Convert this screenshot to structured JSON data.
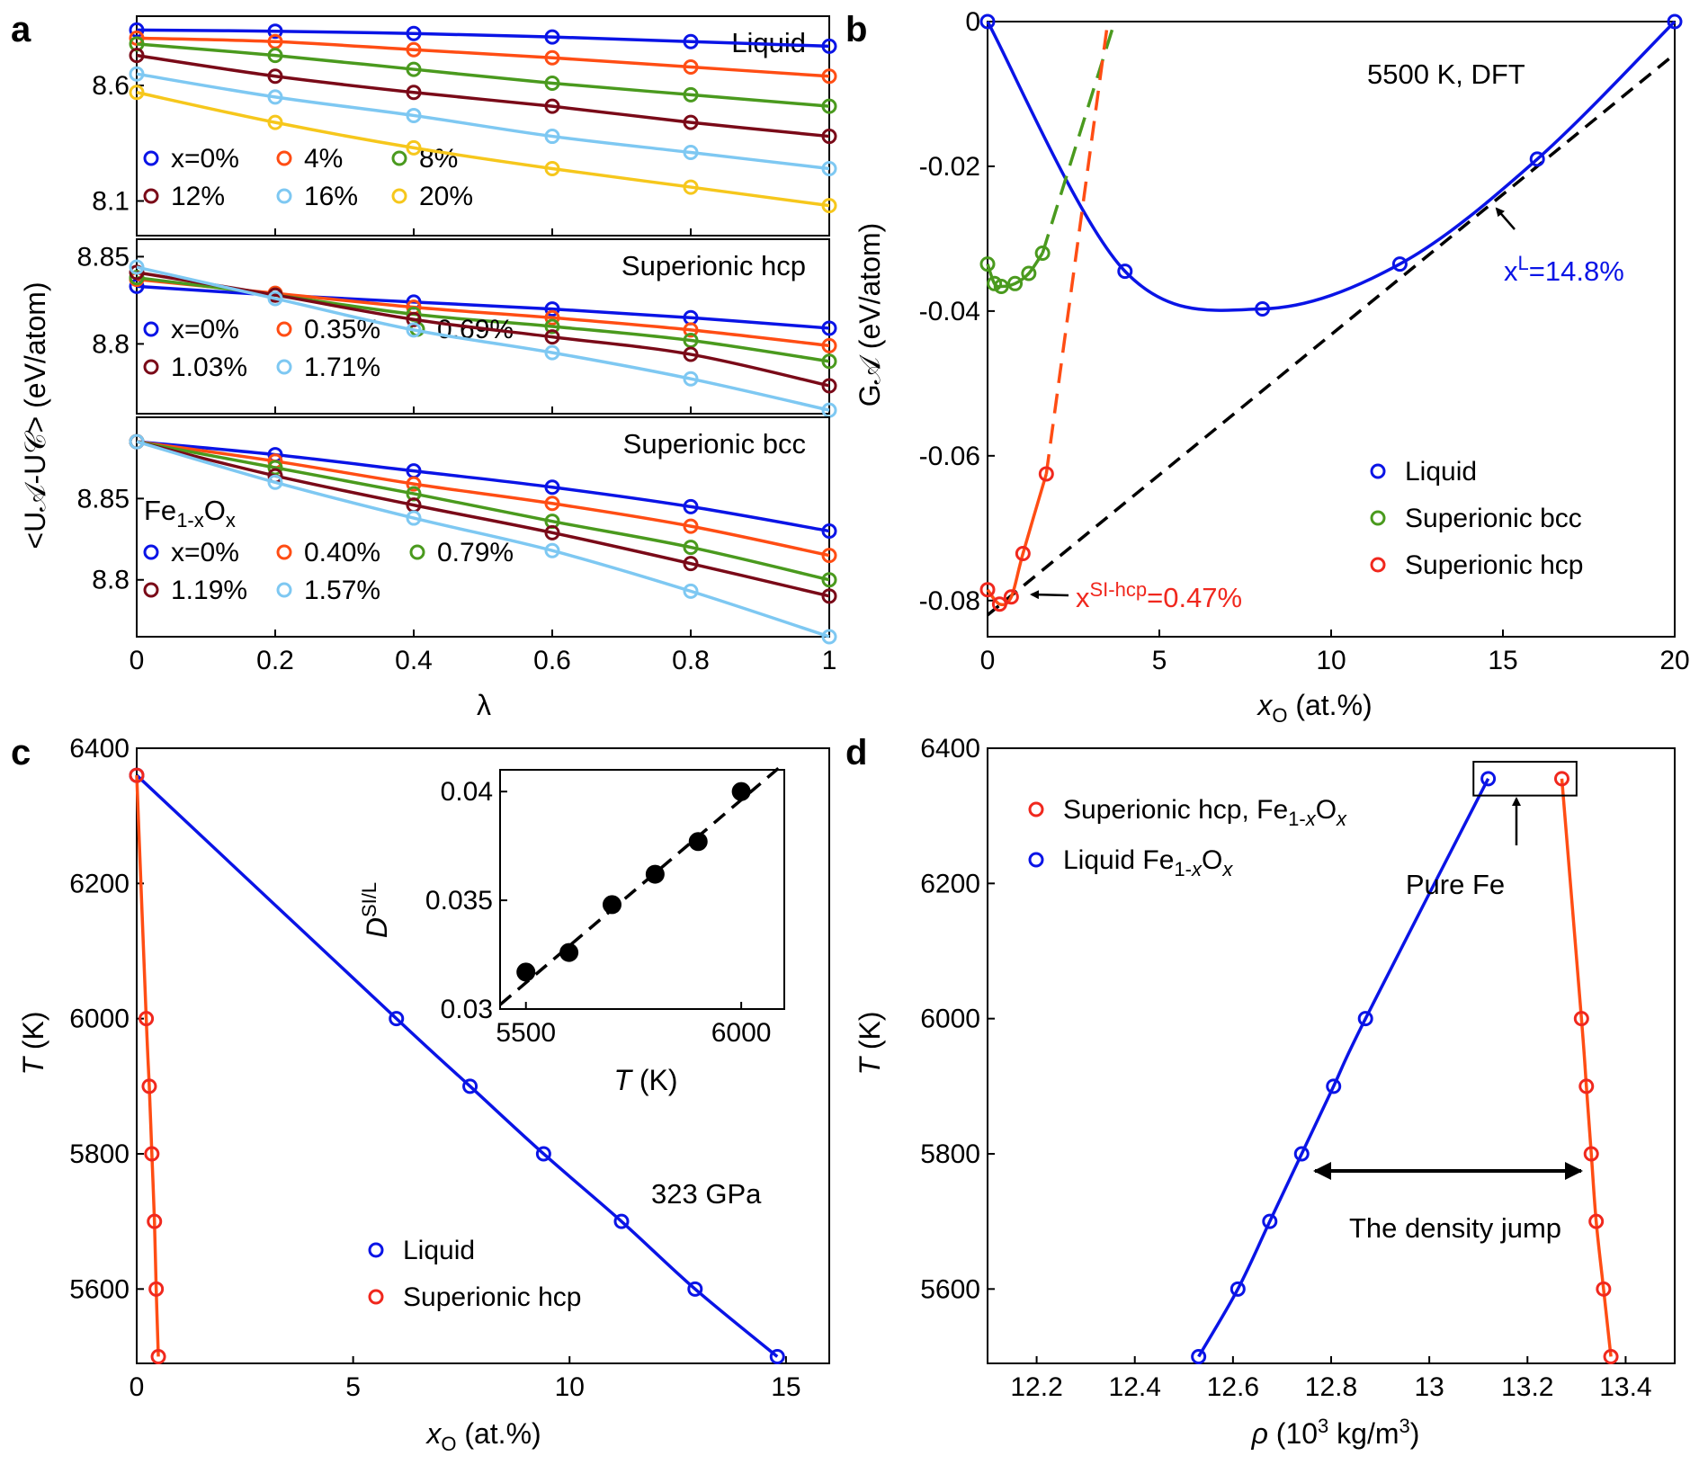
{
  "colors": {
    "blue": "#0a14e6",
    "orange": "#ff4d14",
    "green": "#4a9a1e",
    "maroon": "#7a0a18",
    "lightblue": "#7ec8f2",
    "yellow": "#f6c71c",
    "red": "#f0281e",
    "black": "#000000"
  },
  "chart_data": [
    {
      "panel": "a",
      "panel_label": "a",
      "type": "line",
      "ylabel": "<U𝒜-U𝒞> (eV/atom)",
      "xlabel": "λ",
      "x_ticks": [
        "0",
        "0.2",
        "0.4",
        "0.6",
        "0.8",
        "1"
      ],
      "x": [
        0,
        0.2,
        0.4,
        0.6,
        0.8,
        1
      ],
      "xlim": [
        0,
        1
      ],
      "subplots": [
        {
          "title": "Liquid",
          "ylim": [
            7.95,
            8.9
          ],
          "y_ticks": [
            "8.6",
            "8.1"
          ],
          "y_tick_values": [
            8.6,
            8.1
          ],
          "series": [
            {
              "name": "x=0%",
              "color": "blue",
              "values": [
                8.84,
                8.835,
                8.825,
                8.81,
                8.79,
                8.77
              ]
            },
            {
              "name": "4%",
              "color": "orange",
              "values": [
                8.805,
                8.79,
                8.755,
                8.72,
                8.68,
                8.64
              ]
            },
            {
              "name": "8%",
              "color": "green",
              "values": [
                8.78,
                8.73,
                8.67,
                8.61,
                8.56,
                8.51
              ]
            },
            {
              "name": "12%",
              "color": "maroon",
              "values": [
                8.73,
                8.64,
                8.57,
                8.51,
                8.44,
                8.38
              ]
            },
            {
              "name": "16%",
              "color": "lightblue",
              "values": [
                8.65,
                8.55,
                8.47,
                8.38,
                8.31,
                8.24
              ]
            },
            {
              "name": "20%",
              "color": "yellow",
              "values": [
                8.57,
                8.44,
                8.33,
                8.24,
                8.16,
                8.08
              ]
            }
          ]
        },
        {
          "title": "Superionic hcp",
          "ylim": [
            8.76,
            8.86
          ],
          "y_ticks": [
            "8.85",
            "8.8"
          ],
          "y_tick_values": [
            8.85,
            8.8
          ],
          "series": [
            {
              "name": "x=0%",
              "color": "blue",
              "values": [
                8.833,
                8.828,
                8.824,
                8.82,
                8.815,
                8.809
              ]
            },
            {
              "name": "0.35%",
              "color": "orange",
              "values": [
                8.837,
                8.829,
                8.821,
                8.815,
                8.808,
                8.799
              ]
            },
            {
              "name": "0.69%",
              "color": "green",
              "values": [
                8.838,
                8.828,
                8.817,
                8.81,
                8.802,
                8.79
              ]
            },
            {
              "name": "1.03%",
              "color": "maroon",
              "values": [
                8.841,
                8.828,
                8.814,
                8.804,
                8.794,
                8.776
              ]
            },
            {
              "name": "1.71%",
              "color": "lightblue",
              "values": [
                8.844,
                8.826,
                8.808,
                8.795,
                8.78,
                8.762
              ]
            }
          ]
        },
        {
          "title": "Superionic bcc",
          "ylim": [
            8.765,
            8.9
          ],
          "y_ticks": [
            "8.85",
            "8.8"
          ],
          "y_tick_values": [
            8.85,
            8.8
          ],
          "annotation": "Fe1-xOx",
          "series": [
            {
              "name": "x=0%",
              "color": "blue",
              "values": [
                8.885,
                8.877,
                8.867,
                8.857,
                8.845,
                8.83
              ]
            },
            {
              "name": "0.40%",
              "color": "orange",
              "values": [
                8.885,
                8.873,
                8.859,
                8.847,
                8.833,
                8.815
              ]
            },
            {
              "name": "0.79%",
              "color": "green",
              "values": [
                8.885,
                8.869,
                8.853,
                8.836,
                8.82,
                8.8
              ]
            },
            {
              "name": "1.19%",
              "color": "maroon",
              "values": [
                8.885,
                8.864,
                8.846,
                8.829,
                8.81,
                8.79
              ]
            },
            {
              "name": "1.57%",
              "color": "lightblue",
              "values": [
                8.885,
                8.86,
                8.838,
                8.818,
                8.793,
                8.765
              ]
            }
          ]
        }
      ]
    },
    {
      "panel": "b",
      "panel_label": "b",
      "type": "line",
      "xlabel": "xO (at.%)",
      "ylabel": "G𝒜 (eV/atom)",
      "xlim": [
        0,
        20
      ],
      "ylim": [
        -0.085,
        0
      ],
      "x_ticks": [
        "0",
        "5",
        "10",
        "15",
        "20"
      ],
      "x_tick_values": [
        0,
        5,
        10,
        15,
        20
      ],
      "y_ticks": [
        "0",
        "-0.02",
        "-0.04",
        "-0.06",
        "-0.08"
      ],
      "y_tick_values": [
        0,
        -0.02,
        -0.04,
        -0.06,
        -0.08
      ],
      "condition_label": "5500 K, DFT",
      "annotation_liquid": "x",
      "annotation_liquid_sup": "L",
      "annotation_liquid_value": "=14.8%",
      "annotation_hcp": "x",
      "annotation_hcp_sup": "SI-hcp",
      "annotation_hcp_value": "=0.47%",
      "legend": [
        "Liquid",
        "Superionic bcc",
        "Superionic hcp"
      ],
      "series": [
        {
          "name": "Liquid",
          "color": "blue",
          "x": [
            0,
            4,
            8,
            12,
            16,
            20
          ],
          "y": [
            0,
            -0.0345,
            -0.0397,
            -0.0335,
            -0.019,
            0
          ]
        },
        {
          "name": "Superionic bcc",
          "color": "green",
          "x": [
            0,
            0.2,
            0.4,
            0.8,
            1.2,
            1.6
          ],
          "y": [
            -0.0335,
            -0.0362,
            -0.0366,
            -0.0362,
            -0.0348,
            -0.032
          ]
        },
        {
          "name": "Superionic hcp",
          "color": "red",
          "x": [
            0,
            0.35,
            0.69,
            1.03,
            1.71
          ],
          "y": [
            -0.0785,
            -0.0805,
            -0.0795,
            -0.0735,
            -0.0625
          ]
        }
      ],
      "common_tangent": {
        "x": [
          0,
          20
        ],
        "y": [
          -0.082,
          -0.0045
        ]
      }
    },
    {
      "panel": "c",
      "panel_label": "c",
      "type": "line",
      "xlabel": "xO (at.%)",
      "ylabel": "T (K)",
      "xlim": [
        0,
        16
      ],
      "ylim": [
        5490,
        6400
      ],
      "x_ticks": [
        "0",
        "5",
        "10",
        "15"
      ],
      "x_tick_values": [
        0,
        5,
        10,
        15
      ],
      "y_ticks": [
        "6400",
        "6200",
        "6000",
        "5800",
        "5600"
      ],
      "y_tick_values": [
        6400,
        6200,
        6000,
        5800,
        5600
      ],
      "condition_label": "323 GPa",
      "legend": [
        "Liquid",
        "Superionic hcp"
      ],
      "series": [
        {
          "name": "Liquid",
          "color": "blue",
          "x": [
            0,
            6,
            7.7,
            9.4,
            11.2,
            12.9,
            14.8
          ],
          "y": [
            6360,
            6000,
            5900,
            5800,
            5700,
            5600,
            5500
          ]
        },
        {
          "name": "Superionic hcp",
          "color": "red",
          "x": [
            0,
            0.22,
            0.29,
            0.35,
            0.41,
            0.45,
            0.5
          ],
          "y": [
            6360,
            6000,
            5900,
            5800,
            5700,
            5600,
            5500
          ]
        }
      ],
      "inset": {
        "xlabel": "T (K)",
        "ylabel": "DSI/L",
        "xlim": [
          5440,
          6100
        ],
        "ylim": [
          0.03,
          0.041
        ],
        "x_ticks": [
          "5500",
          "6000"
        ],
        "x_tick_values": [
          5500,
          6000
        ],
        "y_ticks": [
          "0.04",
          "0.035",
          "0.03"
        ],
        "y_tick_values": [
          0.04,
          0.035,
          0.03
        ],
        "points": {
          "x": [
            5500,
            5600,
            5700,
            5800,
            5900,
            6000
          ],
          "y": [
            0.0317,
            0.0326,
            0.0348,
            0.0362,
            0.0377,
            0.04
          ]
        },
        "fit": {
          "x": [
            5440,
            6100
          ],
          "y": [
            0.0302,
            0.0413
          ]
        }
      }
    },
    {
      "panel": "d",
      "panel_label": "d",
      "type": "line",
      "xlabel": "ρ (10³ kg/m³)",
      "ylabel": "T (K)",
      "xlim": [
        12.1,
        13.5
      ],
      "ylim": [
        5490,
        6400
      ],
      "x_ticks": [
        "12.2",
        "12.4",
        "12.6",
        "12.8",
        "13",
        "13.2",
        "13.4"
      ],
      "x_tick_values": [
        12.2,
        12.4,
        12.6,
        12.8,
        13.0,
        13.2,
        13.4
      ],
      "y_ticks": [
        "6400",
        "6200",
        "6000",
        "5800",
        "5600"
      ],
      "y_tick_values": [
        6400,
        6200,
        6000,
        5800,
        5600
      ],
      "legend": [
        "Superionic hcp, Fe1-xOx",
        "Liquid Fe1-xOx"
      ],
      "annotation_pure": "Pure Fe",
      "annotation_jump": "The density jump",
      "series": [
        {
          "name": "Superionic hcp",
          "color": "orange",
          "x": [
            13.27,
            13.31,
            13.32,
            13.33,
            13.34,
            13.355,
            13.37
          ],
          "y": [
            6355,
            6000,
            5900,
            5800,
            5700,
            5600,
            5500
          ]
        },
        {
          "name": "Liquid",
          "color": "blue",
          "x": [
            13.12,
            12.87,
            12.805,
            12.74,
            12.675,
            12.61,
            12.53
          ],
          "y": [
            6355,
            6000,
            5900,
            5800,
            5700,
            5600,
            5500
          ]
        }
      ]
    }
  ]
}
